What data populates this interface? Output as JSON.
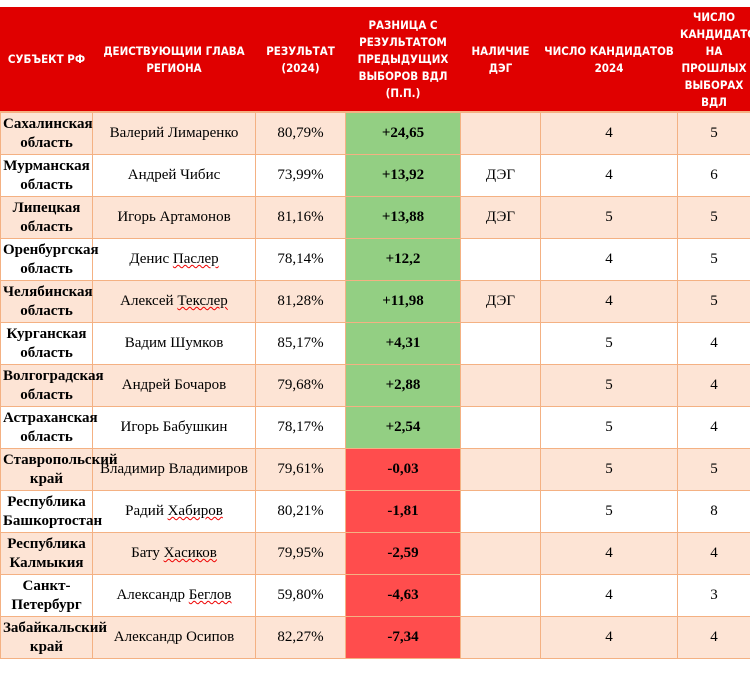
{
  "headers": [
    "СУБЪЕКТ РФ",
    "ДЕИСТВУЮЩИИ ГЛАВА РЕГИОНА",
    "РЕЗУЛЬТАТ (2024)",
    "РАЗНИЦА С РЕЗУЛЬТАТОМ ПРЕДЫДУЩИХ ВЫБОРОВ ВДЛ (П.П.)",
    "НАЛИЧИЕ ДЭГ",
    "ЧИСЛО КАНДИДАТОВ 2024",
    "ЧИСЛО КАНДИДАТОВ НА ПРОШЛЫХ ВЫБОРАХ ВДЛ"
  ],
  "colors": {
    "header": "#e00000",
    "positive": "#93cf83",
    "negative": "#ff4d4d",
    "row_alt": "#fde4d5"
  },
  "rows": [
    {
      "subject": "Сахалинская область",
      "head": "Валерий Лимаренко",
      "result": "80,79%",
      "diff": "+24,65",
      "deg": "",
      "cand2024": "4",
      "cand_prev": "5"
    },
    {
      "subject": "Мурманская область",
      "head": "Андрей Чибис",
      "result": "73,99%",
      "diff": "+13,92",
      "deg": "ДЭГ",
      "cand2024": "4",
      "cand_prev": "6"
    },
    {
      "subject": "Липецкая область",
      "head": "Игорь Артамонов",
      "result": "81,16%",
      "diff": "+13,88",
      "deg": "ДЭГ",
      "cand2024": "5",
      "cand_prev": "5"
    },
    {
      "subject": "Оренбургская область",
      "head": "Денис Паслер",
      "result": "78,14%",
      "diff": "+12,2",
      "deg": "",
      "cand2024": "4",
      "cand_prev": "5"
    },
    {
      "subject": "Челябинская область",
      "head": "Алексей Текслер",
      "result": "81,28%",
      "diff": "+11,98",
      "deg": "ДЭГ",
      "cand2024": "4",
      "cand_prev": "5"
    },
    {
      "subject": "Курганская область",
      "head": "Вадим Шумков",
      "result": "85,17%",
      "diff": "+4,31",
      "deg": "",
      "cand2024": "5",
      "cand_prev": "4"
    },
    {
      "subject": "Волгоградская область",
      "head": "Андрей Бочаров",
      "result": "79,68%",
      "diff": "+2,88",
      "deg": "",
      "cand2024": "5",
      "cand_prev": "4"
    },
    {
      "subject": "Астраханская область",
      "head": "Игорь Бабушкин",
      "result": "78,17%",
      "diff": "+2,54",
      "deg": "",
      "cand2024": "5",
      "cand_prev": "4"
    },
    {
      "subject": "Ставропольский край",
      "head": "Владимир Владимиров",
      "result": "79,61%",
      "diff": "-0,03",
      "deg": "",
      "cand2024": "5",
      "cand_prev": "5"
    },
    {
      "subject": "Республика Башкортостан",
      "head": "Радий Хабиров",
      "result": "80,21%",
      "diff": "-1,81",
      "deg": "",
      "cand2024": "5",
      "cand_prev": "8"
    },
    {
      "subject": "Республика Калмыкия",
      "head": "Бату Хасиков",
      "result": "79,95%",
      "diff": "-2,59",
      "deg": "",
      "cand2024": "4",
      "cand_prev": "4"
    },
    {
      "subject": "Санкт-Петербург",
      "head": "Александр Беглов",
      "result": "59,80%",
      "diff": "-4,63",
      "deg": "",
      "cand2024": "4",
      "cand_prev": "3"
    },
    {
      "subject": "Забайкальский край",
      "head": "Александр Осипов",
      "result": "82,27%",
      "diff": "-7,34",
      "deg": "",
      "cand2024": "4",
      "cand_prev": "4"
    }
  ]
}
